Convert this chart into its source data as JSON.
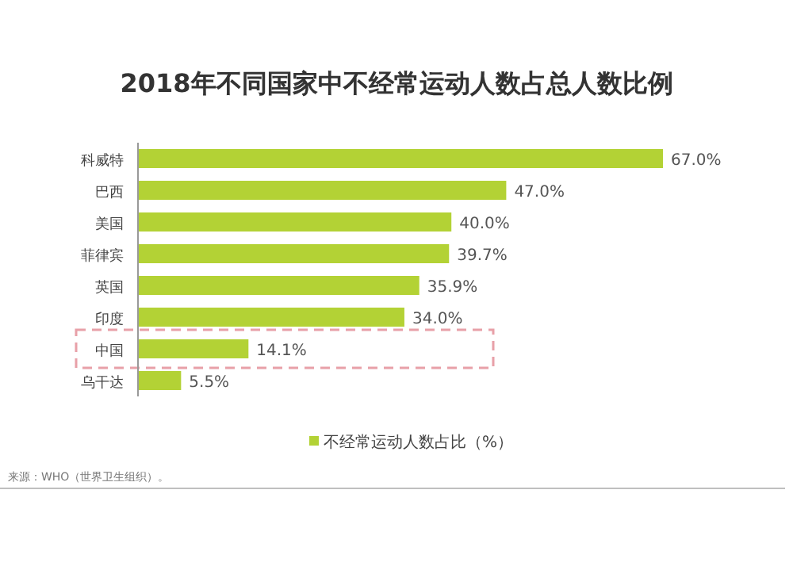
{
  "chart_data": {
    "type": "bar",
    "orientation": "horizontal",
    "title": "2018年不同国家中不经常运动人数占总人数比例",
    "categories": [
      "科威特",
      "巴西",
      "美国",
      "菲律宾",
      "英国",
      "印度",
      "中国",
      "乌干达"
    ],
    "series": [
      {
        "name": "不经常运动人数占比（%）",
        "color": "#b3d235",
        "values": [
          67.0,
          47.0,
          40.0,
          39.7,
          35.9,
          34.0,
          14.1,
          5.5
        ],
        "value_labels": [
          "67.0%",
          "47.0%",
          "40.0%",
          "39.7%",
          "35.9%",
          "34.0%",
          "14.1%",
          "5.5%"
        ]
      }
    ],
    "legend": "bottom",
    "annotations": [
      "来源：WHO（世界卫生组织）。"
    ]
  }
}
